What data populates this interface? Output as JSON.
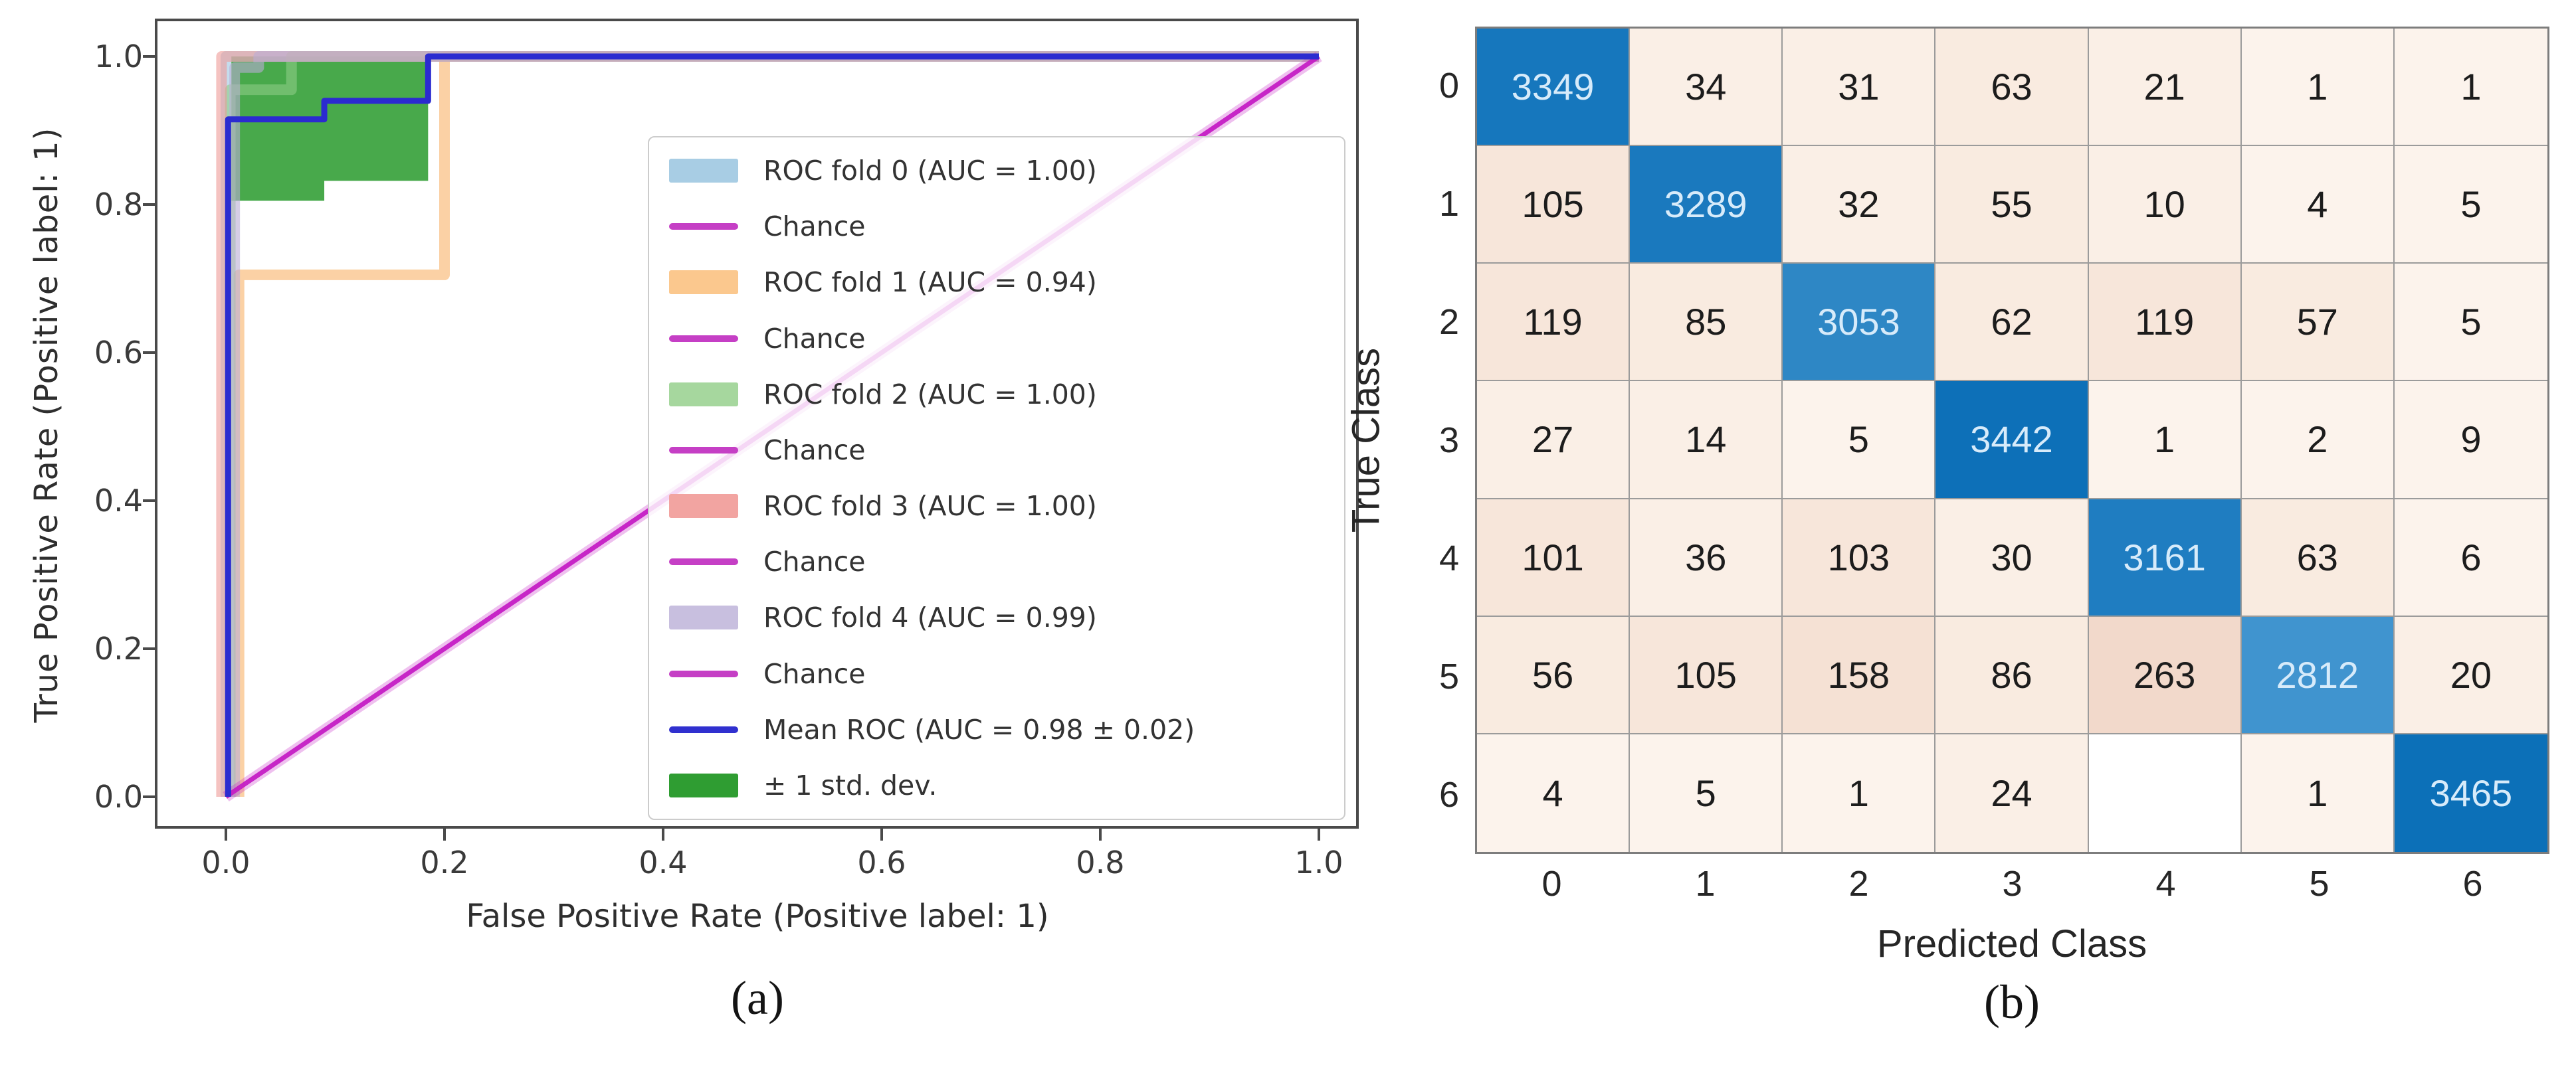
{
  "chart_data": [
    {
      "type": "line",
      "subtype": "roc-cross-validation",
      "caption": "(a)",
      "xlabel": "False Positive Rate (Positive label: 1)",
      "ylabel": "True Positive Rate (Positive label: 1)",
      "xticks": [
        "0.0",
        "0.2",
        "0.4",
        "0.6",
        "0.8",
        "1.0"
      ],
      "yticks": [
        "0.0",
        "0.2",
        "0.4",
        "0.6",
        "0.8",
        "1.0"
      ],
      "xlim": [
        -0.05,
        1.05
      ],
      "ylim": [
        -0.05,
        1.05
      ],
      "grid": false,
      "legend_position": "center right",
      "legend": [
        {
          "label": "ROC fold 0 (AUC = 1.00)",
          "swatch": "patch",
          "color": "#a8cde4"
        },
        {
          "label": "Chance",
          "swatch": "line",
          "color": "#c53fc5"
        },
        {
          "label": "ROC fold 1 (AUC = 0.94)",
          "swatch": "patch",
          "color": "#fbc88e"
        },
        {
          "label": "Chance",
          "swatch": "line",
          "color": "#c53fc5"
        },
        {
          "label": "ROC fold 2 (AUC = 1.00)",
          "swatch": "patch",
          "color": "#a6d79e"
        },
        {
          "label": "Chance",
          "swatch": "line",
          "color": "#c53fc5"
        },
        {
          "label": "ROC fold 3 (AUC = 1.00)",
          "swatch": "patch",
          "color": "#f2a4a1"
        },
        {
          "label": "Chance",
          "swatch": "line",
          "color": "#c53fc5"
        },
        {
          "label": "ROC fold 4 (AUC = 0.99)",
          "swatch": "patch",
          "color": "#c8bfdf"
        },
        {
          "label": "Chance",
          "swatch": "line",
          "color": "#c53fc5"
        },
        {
          "label": "Mean ROC (AUC = 0.98 ± 0.02)",
          "swatch": "line",
          "color": "#3030cf"
        },
        {
          "label": "± 1 std. dev.",
          "swatch": "patch",
          "color": "#2f9d32"
        }
      ],
      "series": [
        {
          "name": "ROC fold 0",
          "auc": 1.0,
          "color": "#9cc7e1",
          "width": 16,
          "opacity": 0.6,
          "points": [
            [
              0,
              0
            ],
            [
              0,
              1
            ],
            [
              1,
              1
            ]
          ]
        },
        {
          "name": "ROC fold 1",
          "auc": 0.94,
          "color": "#f9b269",
          "width": 16,
          "opacity": 0.6,
          "points": [
            [
              0.012,
              0
            ],
            [
              0.012,
              0.705
            ],
            [
              0.2,
              0.705
            ],
            [
              0.2,
              1
            ],
            [
              1,
              1
            ]
          ]
        },
        {
          "name": "ROC fold 2",
          "auc": 1.0,
          "color": "#8ecd86",
          "width": 16,
          "opacity": 0.6,
          "points": [
            [
              0.004,
              0
            ],
            [
              0.004,
              0.955
            ],
            [
              0.06,
              0.955
            ],
            [
              0.06,
              1
            ],
            [
              1,
              1
            ]
          ]
        },
        {
          "name": "ROC fold 3",
          "auc": 1.0,
          "color": "#ef9b98",
          "width": 16,
          "opacity": 0.6,
          "points": [
            [
              -0.004,
              0
            ],
            [
              -0.004,
              1
            ],
            [
              1,
              1
            ]
          ]
        },
        {
          "name": "ROC fold 4",
          "auc": 0.99,
          "color": "#bbadd6",
          "width": 16,
          "opacity": 0.6,
          "points": [
            [
              0.008,
              0
            ],
            [
              0.008,
              0.985
            ],
            [
              0.03,
              0.985
            ],
            [
              0.03,
              1
            ],
            [
              1,
              1
            ]
          ]
        },
        {
          "name": "Chance",
          "color": "#c41ec4",
          "width": 7,
          "opacity": 0.95,
          "points": [
            [
              0,
              0
            ],
            [
              1,
              1
            ]
          ]
        },
        {
          "name": "Mean ROC",
          "auc": 0.98,
          "auc_std": 0.02,
          "color": "#2b2bd0",
          "width": 9,
          "opacity": 1,
          "points": [
            [
              0.002,
              0
            ],
            [
              0.002,
              0.915
            ],
            [
              0.09,
              0.915
            ],
            [
              0.09,
              0.94
            ],
            [
              0.185,
              0.94
            ],
            [
              0.185,
              1
            ],
            [
              1,
              1
            ]
          ]
        }
      ],
      "std_band": {
        "name": "± 1 std. dev.",
        "color": "#2f9d32",
        "opacity": 0.88,
        "upper": [
          [
            0.005,
            1.0
          ],
          [
            0.185,
            1.0
          ]
        ],
        "lower": [
          [
            0.005,
            0.805
          ],
          [
            0.09,
            0.805
          ],
          [
            0.09,
            0.832
          ],
          [
            0.185,
            0.832
          ]
        ]
      }
    },
    {
      "type": "heatmap",
      "subtype": "confusion-matrix",
      "caption": "(b)",
      "xlabel": "Predicted Class",
      "ylabel": "True Class",
      "row_labels": [
        "0",
        "1",
        "2",
        "3",
        "4",
        "5",
        "6"
      ],
      "col_labels": [
        "0",
        "1",
        "2",
        "3",
        "4",
        "5",
        "6"
      ],
      "values": [
        [
          3349,
          34,
          31,
          63,
          21,
          1,
          1
        ],
        [
          105,
          3289,
          32,
          55,
          10,
          4,
          5
        ],
        [
          119,
          85,
          3053,
          62,
          119,
          57,
          5
        ],
        [
          27,
          14,
          5,
          3442,
          1,
          2,
          9
        ],
        [
          101,
          36,
          103,
          30,
          3161,
          63,
          6
        ],
        [
          56,
          105,
          158,
          86,
          263,
          2812,
          20
        ],
        [
          4,
          5,
          1,
          24,
          "",
          1,
          3465
        ]
      ],
      "cell_colors": [
        [
          "#1677bd",
          "#faefe6",
          "#faefe6",
          "#f9ebe0",
          "#faefe6",
          "#fcf3ec",
          "#fcf3ec"
        ],
        [
          "#f7e6da",
          "#1a79be",
          "#faefe6",
          "#f9ebe0",
          "#faefe6",
          "#fcf3ec",
          "#fcf3ec"
        ],
        [
          "#f7e6da",
          "#f9ebe0",
          "#2e87c5",
          "#f9ebe0",
          "#f7e6da",
          "#f9ebe0",
          "#fcf3ec"
        ],
        [
          "#faefe6",
          "#faefe6",
          "#fcf3ec",
          "#0d70b8",
          "#fcf3ec",
          "#fcf3ec",
          "#fcf3ec"
        ],
        [
          "#f7e6da",
          "#faefe6",
          "#f7e6da",
          "#faefe6",
          "#1f7dc1",
          "#f9ebe0",
          "#fcf3ec"
        ],
        [
          "#f9ebe0",
          "#f7e6da",
          "#f5e1d4",
          "#f9ebe0",
          "#f2d9cb",
          "#4094cf",
          "#faefe6"
        ],
        [
          "#fcf3ec",
          "#fcf3ec",
          "#fcf3ec",
          "#faefe6",
          "#ffffff",
          "#fcf3ec",
          "#0c70b8"
        ]
      ],
      "diag_text_color": "#d7ebfa",
      "offdiag_text_color": "#1c1c1c"
    }
  ]
}
